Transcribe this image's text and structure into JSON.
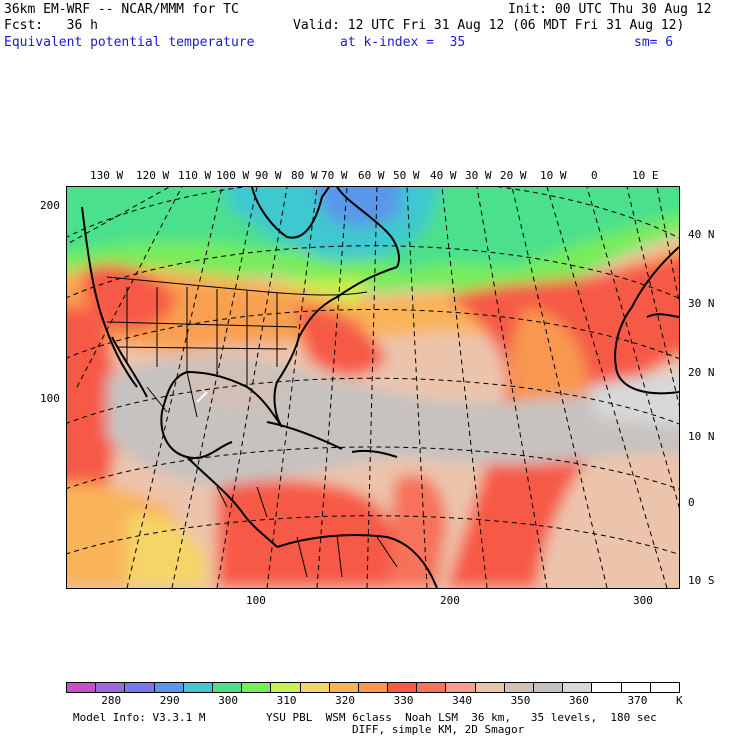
{
  "header": {
    "model": "36km EM-WRF -- NCAR/MMM for TC",
    "init": "Init: 00 UTC Thu 30 Aug 12",
    "fcst": "Fcst:   36 h",
    "valid": "Valid: 12 UTC Fri 31 Aug 12 (06 MDT Fri 31 Aug 12)",
    "field": "Equivalent potential temperature",
    "level": "at k-index =  35",
    "smooth": "sm= 6"
  },
  "map": {
    "lon_labels": [
      "130 W",
      "120 W",
      "110 W",
      "100 W",
      "90 W",
      "80 W",
      "70 W",
      "60 W",
      "50 W",
      "40 W",
      "30 W",
      "20 W",
      "10 W",
      "0",
      "10 E"
    ],
    "lat_labels": [
      "40 N",
      "30 N",
      "20 N",
      "10 N",
      "0",
      "10 S"
    ],
    "y_grid_labels": [
      "200",
      "100"
    ],
    "x_grid_labels": [
      "100",
      "200",
      "300"
    ]
  },
  "colorbar": {
    "colors": [
      "#c84fc8",
      "#9b6ad8",
      "#7a78e6",
      "#5a96ea",
      "#40c8d0",
      "#4ce08c",
      "#78ec5c",
      "#ccf050",
      "#f5d468",
      "#f9b45a",
      "#f89850",
      "#f65a46",
      "#f6725a",
      "#f5a08a",
      "#ecc4ac",
      "#d2c0b6",
      "#c6c2c0",
      "#d8d8d8",
      "#ffffff",
      "#ffffff",
      "#ffffff"
    ],
    "tick_labels": [
      "280",
      "290",
      "300",
      "310",
      "320",
      "330",
      "340",
      "350",
      "360",
      "370"
    ],
    "unit": "K"
  },
  "footer": {
    "info": "Model Info: V3.3.1 M",
    "physics": "YSU PBL  WSM 6class  Noah LSM  36 km,   35 levels,  180 sec",
    "diff": "DIFF, simple KM, 2D Smagor"
  }
}
